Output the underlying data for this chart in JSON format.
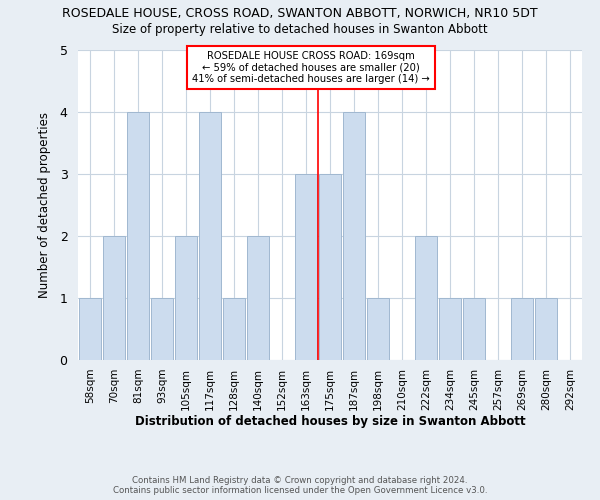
{
  "title": "ROSEDALE HOUSE, CROSS ROAD, SWANTON ABBOTT, NORWICH, NR10 5DT",
  "subtitle": "Size of property relative to detached houses in Swanton Abbott",
  "xlabel": "Distribution of detached houses by size in Swanton Abbott",
  "ylabel": "Number of detached properties",
  "bar_labels": [
    "58sqm",
    "70sqm",
    "81sqm",
    "93sqm",
    "105sqm",
    "117sqm",
    "128sqm",
    "140sqm",
    "152sqm",
    "163sqm",
    "175sqm",
    "187sqm",
    "198sqm",
    "210sqm",
    "222sqm",
    "234sqm",
    "245sqm",
    "257sqm",
    "269sqm",
    "280sqm",
    "292sqm"
  ],
  "bar_heights": [
    1,
    2,
    4,
    1,
    2,
    4,
    1,
    2,
    0,
    3,
    3,
    4,
    1,
    0,
    2,
    1,
    1,
    0,
    1,
    1,
    0
  ],
  "bar_color": "#ccdcee",
  "bar_edge_color": "#a0b8d0",
  "ylim": [
    0,
    5
  ],
  "yticks": [
    0,
    1,
    2,
    3,
    4,
    5
  ],
  "red_line_x": 9.5,
  "annotation_title": "ROSEDALE HOUSE CROSS ROAD: 169sqm",
  "annotation_line1": "← 59% of detached houses are smaller (20)",
  "annotation_line2": "41% of semi-detached houses are larger (14) →",
  "footer_line1": "Contains HM Land Registry data © Crown copyright and database right 2024.",
  "footer_line2": "Contains public sector information licensed under the Open Government Licence v3.0.",
  "bg_color": "#e8eef4",
  "plot_bg_color": "#ffffff",
  "grid_color": "#c8d4e0"
}
